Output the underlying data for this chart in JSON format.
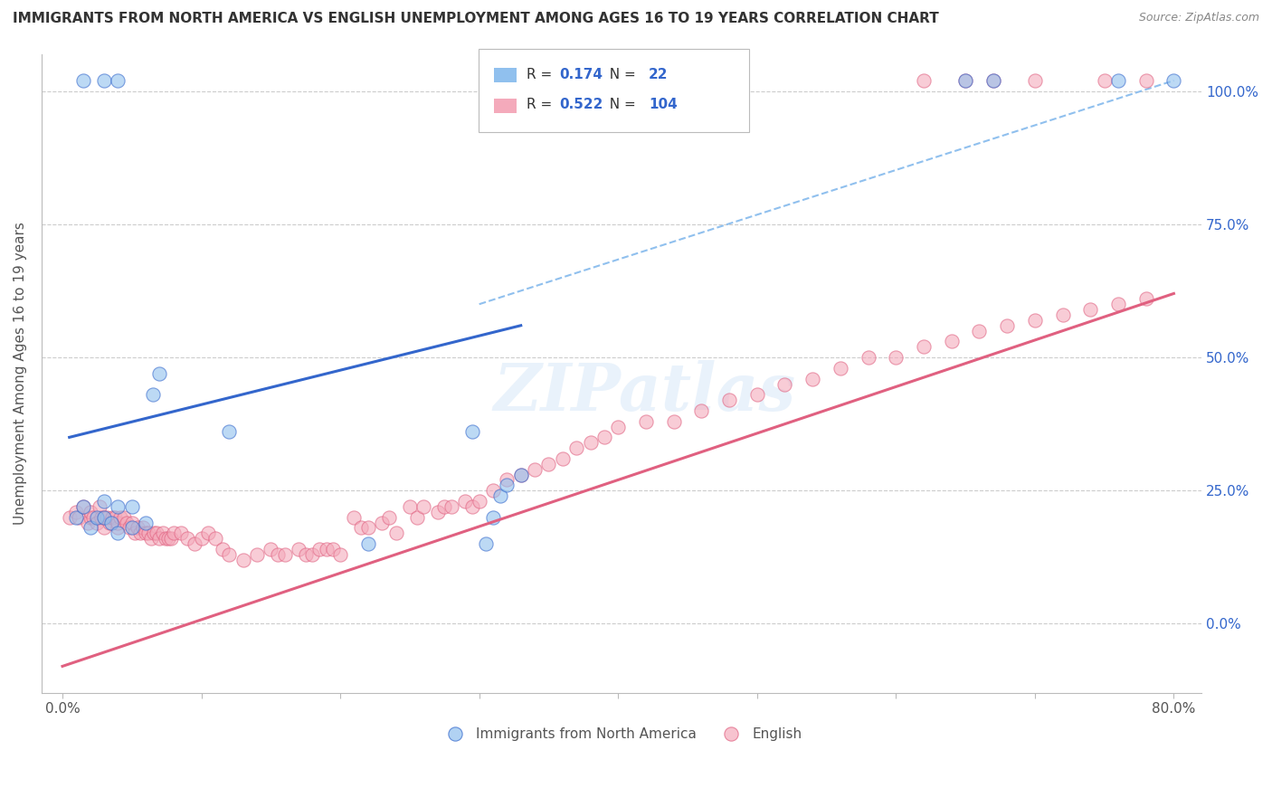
{
  "title": "IMMIGRANTS FROM NORTH AMERICA VS ENGLISH UNEMPLOYMENT AMONG AGES 16 TO 19 YEARS CORRELATION CHART",
  "source": "Source: ZipAtlas.com",
  "ylabel": "Unemployment Among Ages 16 to 19 years",
  "xlabel_ticks": [
    "0.0%",
    "",
    "",
    "",
    "",
    "",
    "",
    "",
    "80.0%"
  ],
  "ylabel_ticks_right": [
    "100.0%",
    "75.0%",
    "50.0%",
    "25.0%",
    "0.0%"
  ],
  "xlim": [
    0.0,
    0.8
  ],
  "ylim": [
    -0.12,
    1.05
  ],
  "blue_R": "0.174",
  "blue_N": "22",
  "pink_R": "0.522",
  "pink_N": "104",
  "blue_color": "#90C0EE",
  "pink_color": "#F4AABB",
  "blue_line_color": "#3366CC",
  "pink_line_color": "#E06080",
  "blue_dash_color": "#90C0EE",
  "legend_label_blue": "Immigrants from North America",
  "legend_label_pink": "English",
  "watermark": "ZIPatlas",
  "blue_scatter_x": [
    0.01,
    0.015,
    0.02,
    0.025,
    0.03,
    0.03,
    0.035,
    0.04,
    0.04,
    0.05,
    0.05,
    0.06,
    0.065,
    0.07,
    0.12,
    0.22,
    0.295,
    0.305,
    0.31,
    0.315,
    0.32,
    0.33
  ],
  "blue_scatter_y": [
    0.2,
    0.22,
    0.18,
    0.2,
    0.2,
    0.23,
    0.19,
    0.17,
    0.22,
    0.18,
    0.22,
    0.19,
    0.43,
    0.47,
    0.36,
    0.15,
    0.36,
    0.15,
    0.2,
    0.24,
    0.26,
    0.28
  ],
  "pink_scatter_x": [
    0.005,
    0.01,
    0.012,
    0.015,
    0.018,
    0.02,
    0.02,
    0.022,
    0.025,
    0.027,
    0.028,
    0.03,
    0.03,
    0.032,
    0.034,
    0.036,
    0.038,
    0.04,
    0.04,
    0.042,
    0.044,
    0.046,
    0.048,
    0.05,
    0.052,
    0.054,
    0.056,
    0.058,
    0.06,
    0.062,
    0.064,
    0.066,
    0.068,
    0.07,
    0.072,
    0.074,
    0.076,
    0.078,
    0.08,
    0.085,
    0.09,
    0.095,
    0.1,
    0.105,
    0.11,
    0.115,
    0.12,
    0.13,
    0.14,
    0.15,
    0.155,
    0.16,
    0.17,
    0.175,
    0.18,
    0.185,
    0.19,
    0.195,
    0.2,
    0.21,
    0.215,
    0.22,
    0.23,
    0.235,
    0.24,
    0.25,
    0.255,
    0.26,
    0.27,
    0.275,
    0.28,
    0.29,
    0.295,
    0.3,
    0.31,
    0.32,
    0.33,
    0.34,
    0.35,
    0.36,
    0.37,
    0.38,
    0.39,
    0.4,
    0.42,
    0.44,
    0.46,
    0.48,
    0.5,
    0.52,
    0.54,
    0.56,
    0.58,
    0.6,
    0.62,
    0.64,
    0.66,
    0.68,
    0.7,
    0.72,
    0.74,
    0.76,
    0.78
  ],
  "pink_scatter_y": [
    0.2,
    0.21,
    0.2,
    0.22,
    0.19,
    0.2,
    0.21,
    0.2,
    0.19,
    0.22,
    0.2,
    0.18,
    0.2,
    0.2,
    0.19,
    0.2,
    0.2,
    0.18,
    0.19,
    0.2,
    0.2,
    0.19,
    0.18,
    0.19,
    0.17,
    0.18,
    0.17,
    0.18,
    0.17,
    0.17,
    0.16,
    0.17,
    0.17,
    0.16,
    0.17,
    0.16,
    0.16,
    0.16,
    0.17,
    0.17,
    0.16,
    0.15,
    0.16,
    0.17,
    0.16,
    0.14,
    0.13,
    0.12,
    0.13,
    0.14,
    0.13,
    0.13,
    0.14,
    0.13,
    0.13,
    0.14,
    0.14,
    0.14,
    0.13,
    0.2,
    0.18,
    0.18,
    0.19,
    0.2,
    0.17,
    0.22,
    0.2,
    0.22,
    0.21,
    0.22,
    0.22,
    0.23,
    0.22,
    0.23,
    0.25,
    0.27,
    0.28,
    0.29,
    0.3,
    0.31,
    0.33,
    0.34,
    0.35,
    0.37,
    0.38,
    0.38,
    0.4,
    0.42,
    0.43,
    0.45,
    0.46,
    0.48,
    0.5,
    0.5,
    0.52,
    0.53,
    0.55,
    0.56,
    0.57,
    0.58,
    0.59,
    0.6,
    0.61
  ],
  "blue_line_x": [
    0.005,
    0.33
  ],
  "blue_line_y": [
    0.35,
    0.56
  ],
  "pink_line_x": [
    0.0,
    0.8
  ],
  "pink_line_y": [
    -0.08,
    0.62
  ],
  "blue_dash_line_x": [
    0.3,
    0.8
  ],
  "blue_dash_line_y": [
    0.6,
    1.02
  ],
  "top_blue_x": [
    0.015,
    0.03,
    0.04,
    0.65,
    0.67,
    0.76,
    0.8
  ],
  "top_blue_y": [
    1.02,
    1.02,
    1.02,
    1.02,
    1.02,
    1.02,
    1.02
  ],
  "top_pink_x": [
    0.62,
    0.65,
    0.67,
    0.7,
    0.75,
    0.78
  ],
  "top_pink_y": [
    1.02,
    1.02,
    1.02,
    1.02,
    1.02,
    1.02
  ]
}
